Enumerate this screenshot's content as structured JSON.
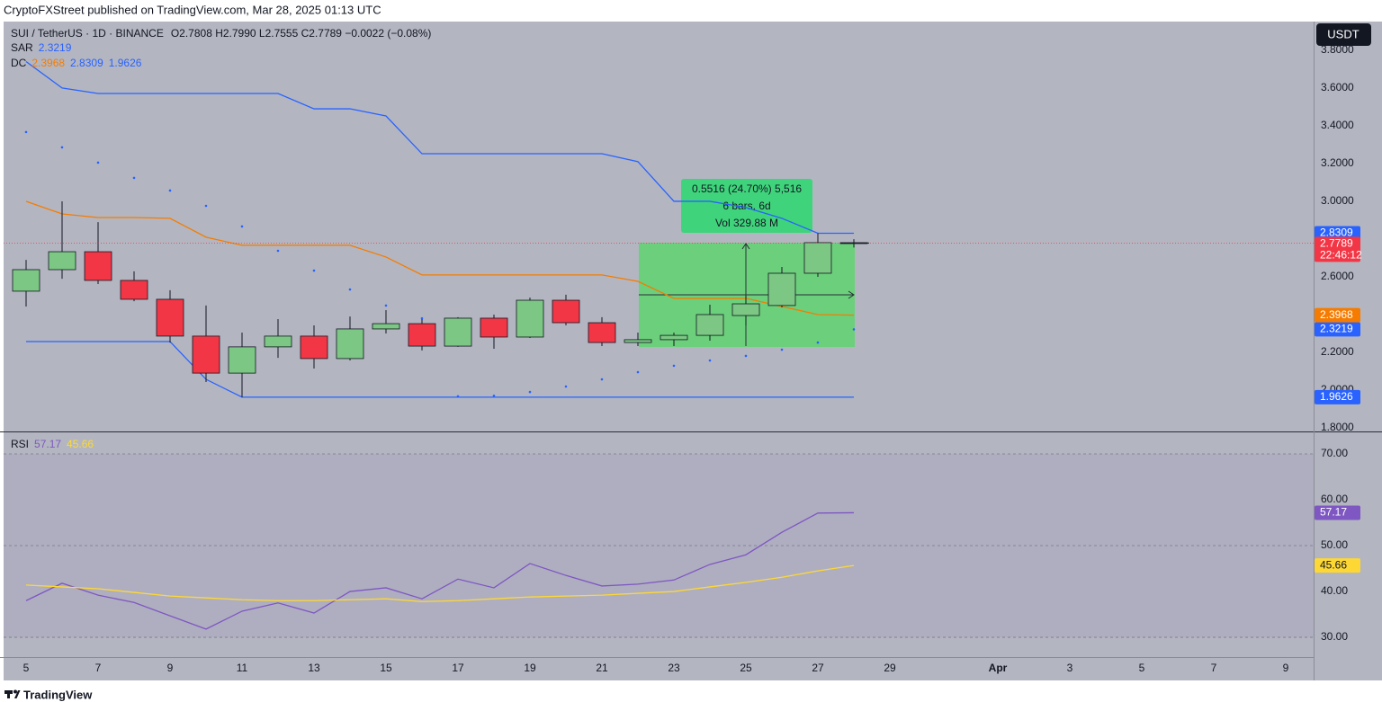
{
  "header": "CryptoFXStreet published on TradingView.com, Mar 28, 2025 01:13 UTC",
  "footer": "TradingView",
  "chart_data": [
    {
      "type": "candlestick",
      "title": "SUI / TetherUS · 1D · BINANCE",
      "ohlc_legend": "O2.7808  H2.7990  L2.7555  C2.7789  −0.0022 (−0.08%)",
      "currency": "USDT",
      "countdown": "22:46:12",
      "up_color": "#7bc783",
      "down_color": "#f23645",
      "grid": false,
      "categories": [
        "5",
        null,
        "7",
        null,
        "9",
        null,
        "11",
        null,
        "13",
        null,
        "15",
        null,
        "17",
        null,
        "19",
        null,
        "21",
        null,
        "23",
        null,
        "25",
        null,
        "27",
        null,
        "29",
        null,
        null,
        "Apr",
        null,
        "3",
        null,
        "5",
        null,
        "7",
        null,
        "9"
      ],
      "open": [
        2.524,
        2.638,
        2.733,
        2.581,
        2.481,
        2.286,
        2.09,
        2.229,
        2.286,
        2.167,
        2.324,
        2.352,
        2.233,
        2.381,
        2.281,
        2.476,
        2.357,
        2.252,
        2.267,
        2.29,
        2.395,
        2.448,
        2.619,
        2.7808,
        null,
        null,
        null,
        null,
        null,
        null,
        null,
        null,
        null,
        null,
        null,
        null
      ],
      "high": [
        2.69,
        3.0,
        2.89,
        2.629,
        2.529,
        2.448,
        2.305,
        2.376,
        2.343,
        2.39,
        2.424,
        2.376,
        2.386,
        2.4,
        2.49,
        2.505,
        2.386,
        2.305,
        2.305,
        2.452,
        2.5,
        2.652,
        2.8309,
        2.799,
        null,
        null,
        null,
        null,
        null,
        null,
        null,
        null,
        null,
        null,
        null,
        null
      ],
      "low": [
        2.443,
        2.59,
        2.562,
        2.471,
        2.252,
        2.043,
        1.9626,
        2.171,
        2.114,
        2.157,
        2.3,
        2.21,
        2.229,
        2.219,
        2.276,
        2.343,
        2.233,
        2.233,
        2.233,
        2.262,
        2.343,
        2.438,
        2.6,
        2.7555,
        null,
        null,
        null,
        null,
        null,
        null,
        null,
        null,
        null,
        null,
        null,
        null
      ],
      "close": [
        2.638,
        2.733,
        2.581,
        2.481,
        2.286,
        2.09,
        2.229,
        2.286,
        2.167,
        2.324,
        2.352,
        2.233,
        2.381,
        2.281,
        2.476,
        2.357,
        2.252,
        2.267,
        2.29,
        2.4,
        2.457,
        2.619,
        2.781,
        2.7789,
        null,
        null,
        null,
        null,
        null,
        null,
        null,
        null,
        null,
        null,
        null,
        null
      ],
      "indicators": [
        {
          "name": "SAR",
          "lines": [
            {
              "color": "#2962ff",
              "style": "dots",
              "values": [
                3.367,
                3.286,
                3.205,
                3.124,
                3.057,
                2.976,
                2.867,
                2.738,
                2.633,
                2.533,
                2.448,
                2.38,
                1.967,
                1.97,
                1.99,
                2.019,
                2.057,
                2.095,
                2.129,
                2.157,
                2.181,
                2.214,
                2.252,
                2.3219,
                null,
                null,
                null,
                null,
                null,
                null,
                null,
                null,
                null,
                null,
                null,
                null
              ]
            }
          ]
        },
        {
          "name": "DC",
          "lines": [
            {
              "color": "#f57c00",
              "style": "line",
              "values": [
                3.0,
                2.933,
                2.914,
                2.914,
                2.91,
                2.81,
                2.767,
                2.767,
                2.767,
                2.767,
                2.705,
                2.61,
                2.61,
                2.61,
                2.61,
                2.61,
                2.61,
                2.576,
                2.486,
                2.486,
                2.486,
                2.443,
                2.4,
                2.3968,
                null,
                null,
                null,
                null,
                null,
                null,
                null,
                null,
                null,
                null,
                null,
                null
              ]
            },
            {
              "color": "#2962ff",
              "style": "line",
              "values": [
                3.74,
                3.6,
                3.571,
                3.571,
                3.571,
                3.571,
                3.571,
                3.571,
                3.49,
                3.49,
                3.452,
                3.252,
                3.252,
                3.252,
                3.252,
                3.252,
                3.252,
                3.21,
                3.0,
                3.0,
                2.967,
                2.91,
                2.8309,
                2.8309,
                null,
                null,
                null,
                null,
                null,
                null,
                null,
                null,
                null,
                null,
                null,
                null
              ]
            },
            {
              "color": "#2962ff",
              "style": "line",
              "values": [
                2.257,
                2.257,
                2.257,
                2.257,
                2.257,
                2.057,
                1.9626,
                1.9626,
                1.9626,
                1.9626,
                1.9626,
                1.9626,
                1.9626,
                1.9626,
                1.9626,
                1.9626,
                1.9626,
                1.9626,
                1.9626,
                1.9626,
                1.9626,
                1.9626,
                1.9626,
                1.9626,
                null,
                null,
                null,
                null,
                null,
                null,
                null,
                null,
                null,
                null,
                null,
                null
              ]
            }
          ]
        }
      ],
      "annotations": [
        "0.5516 (24.70%) 5,516",
        "6 bars, 6d",
        "Vol 329.88 M"
      ],
      "ylim": [
        1.781,
        3.952
      ],
      "yticks": [
        {
          "value": 3.8,
          "label": "3.8000"
        },
        {
          "value": 3.6,
          "label": "3.6000"
        },
        {
          "value": 3.4,
          "label": "3.4000"
        },
        {
          "value": 3.2,
          "label": "3.2000"
        },
        {
          "value": 3.0,
          "label": "3.0000"
        },
        {
          "value": 2.8,
          "label": "2.8000"
        },
        {
          "value": 2.6,
          "label": "2.6000"
        },
        {
          "value": 2.4,
          "label": "2.4000"
        },
        {
          "value": 2.2,
          "label": "2.2000"
        },
        {
          "value": 2.0,
          "label": "2.0000"
        },
        {
          "value": 1.8,
          "label": "1.8000"
        }
      ]
    },
    {
      "type": "line",
      "title": "RSI",
      "series": [
        {
          "color": "#7e57c2",
          "values": [
            38.0,
            41.8,
            39.2,
            37.6,
            34.7,
            31.8,
            35.7,
            37.5,
            35.3,
            40.0,
            40.8,
            38.4,
            42.7,
            40.8,
            46.1,
            43.5,
            41.2,
            41.6,
            42.5,
            45.9,
            48.0,
            52.9,
            57.1,
            57.17,
            null,
            null,
            null,
            null,
            null,
            null,
            null,
            null,
            null,
            null,
            null,
            null
          ]
        },
        {
          "color": "#fdd835",
          "values": [
            41.4,
            41.0,
            40.6,
            39.8,
            39.0,
            38.6,
            38.2,
            38.0,
            38.0,
            38.2,
            38.4,
            37.8,
            38.0,
            38.4,
            38.8,
            39.0,
            39.2,
            39.6,
            40.0,
            41.0,
            42.0,
            43.1,
            44.5,
            45.66,
            null,
            null,
            null,
            null,
            null,
            null,
            null,
            null,
            null,
            null,
            null,
            null
          ]
        }
      ],
      "band": [
        30,
        70
      ],
      "hlines": [
        70,
        50,
        30
      ],
      "ylim": [
        25.7,
        74.7
      ],
      "yticks": [
        {
          "value": 70,
          "label": "70.00"
        },
        {
          "value": 60,
          "label": "60.00"
        },
        {
          "value": 50,
          "label": "50.00"
        },
        {
          "value": 40,
          "label": "40.00"
        },
        {
          "value": 30,
          "label": "30.00"
        }
      ]
    }
  ]
}
